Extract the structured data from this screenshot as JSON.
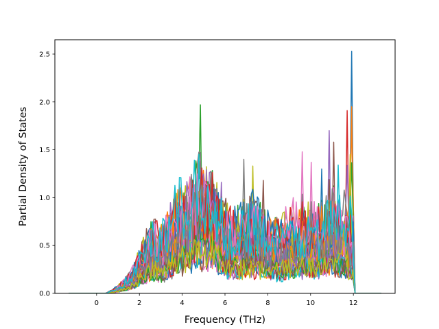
{
  "chart_data": {
    "type": "line",
    "title": "",
    "xlabel": "Frequency (THz)",
    "ylabel": "Partial Density of States",
    "xlim": [
      -1.95,
      13.95
    ],
    "ylim": [
      0,
      2.65
    ],
    "xticks": [
      0,
      2,
      4,
      6,
      8,
      10,
      12
    ],
    "xtick_labels": [
      "0",
      "2",
      "4",
      "6",
      "8",
      "10",
      "12"
    ],
    "yticks": [
      0.0,
      0.5,
      1.0,
      1.5,
      2.0,
      2.5
    ],
    "ytick_labels": [
      "0.0",
      "0.5",
      "1.0",
      "1.5",
      "2.0",
      "2.5"
    ],
    "grid": false,
    "legend": "none",
    "series_count": 30,
    "x_range": [
      -1.3,
      13.3
    ],
    "palette": [
      "#1f77b4",
      "#ff7f0e",
      "#2ca02c",
      "#d62728",
      "#9467bd",
      "#8c564b",
      "#e377c2",
      "#7f7f7f",
      "#bcbd22",
      "#17becf"
    ],
    "peaks": [
      {
        "x": 11.9,
        "y": 2.53
      },
      {
        "x": 11.95,
        "y": 1.95
      },
      {
        "x": 4.85,
        "y": 1.97
      },
      {
        "x": 11.7,
        "y": 1.91
      },
      {
        "x": 10.85,
        "y": 1.7
      },
      {
        "x": 11.05,
        "y": 1.58
      },
      {
        "x": 9.6,
        "y": 1.48
      },
      {
        "x": 6.85,
        "y": 1.4
      },
      {
        "x": 7.3,
        "y": 1.33
      },
      {
        "x": 11.3,
        "y": 1.34
      },
      {
        "x": 10.5,
        "y": 1.3
      },
      {
        "x": 4.75,
        "y": 1.42
      },
      {
        "x": 4.45,
        "y": 1.13
      },
      {
        "x": 3.85,
        "y": 1.14
      },
      {
        "x": 5.85,
        "y": 1.16
      },
      {
        "x": 7.8,
        "y": 1.18
      },
      {
        "x": 10.05,
        "y": 1.37
      },
      {
        "x": 11.55,
        "y": 1.08
      },
      {
        "x": 11.85,
        "y": 1.45
      }
    ]
  }
}
